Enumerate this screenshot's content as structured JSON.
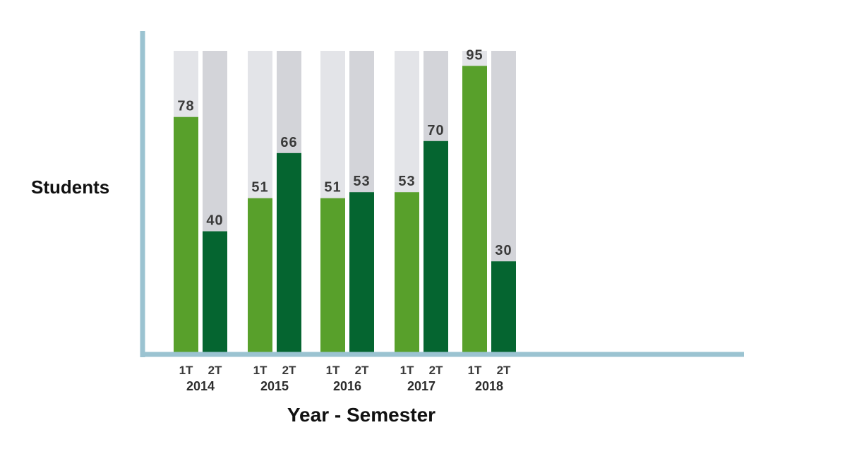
{
  "chart_data": {
    "type": "bar",
    "title": "",
    "ylabel": "Students",
    "xlabel": "Year - Semester",
    "ylim": [
      0,
      100
    ],
    "grid": false,
    "legend": "none",
    "groups": [
      {
        "year": "2014",
        "bars": [
          {
            "semester": "1T",
            "value": 78
          },
          {
            "semester": "2T",
            "value": 40
          }
        ]
      },
      {
        "year": "2015",
        "bars": [
          {
            "semester": "1T",
            "value": 51
          },
          {
            "semester": "2T",
            "value": 66
          }
        ]
      },
      {
        "year": "2016",
        "bars": [
          {
            "semester": "1T",
            "value": 51
          },
          {
            "semester": "2T",
            "value": 53
          }
        ]
      },
      {
        "year": "2017",
        "bars": [
          {
            "semester": "1T",
            "value": 53
          },
          {
            "semester": "2T",
            "value": 70
          }
        ]
      },
      {
        "year": "2018",
        "bars": [
          {
            "semester": "1T",
            "value": 95
          },
          {
            "semester": "2T",
            "value": 30
          }
        ]
      }
    ],
    "colors": {
      "axis": "#9bc3d1",
      "bar_1T": "#58a02b",
      "bar_2T": "#056530",
      "track_1T": "#e3e4e8",
      "track_2T": "#d3d4d9"
    }
  }
}
